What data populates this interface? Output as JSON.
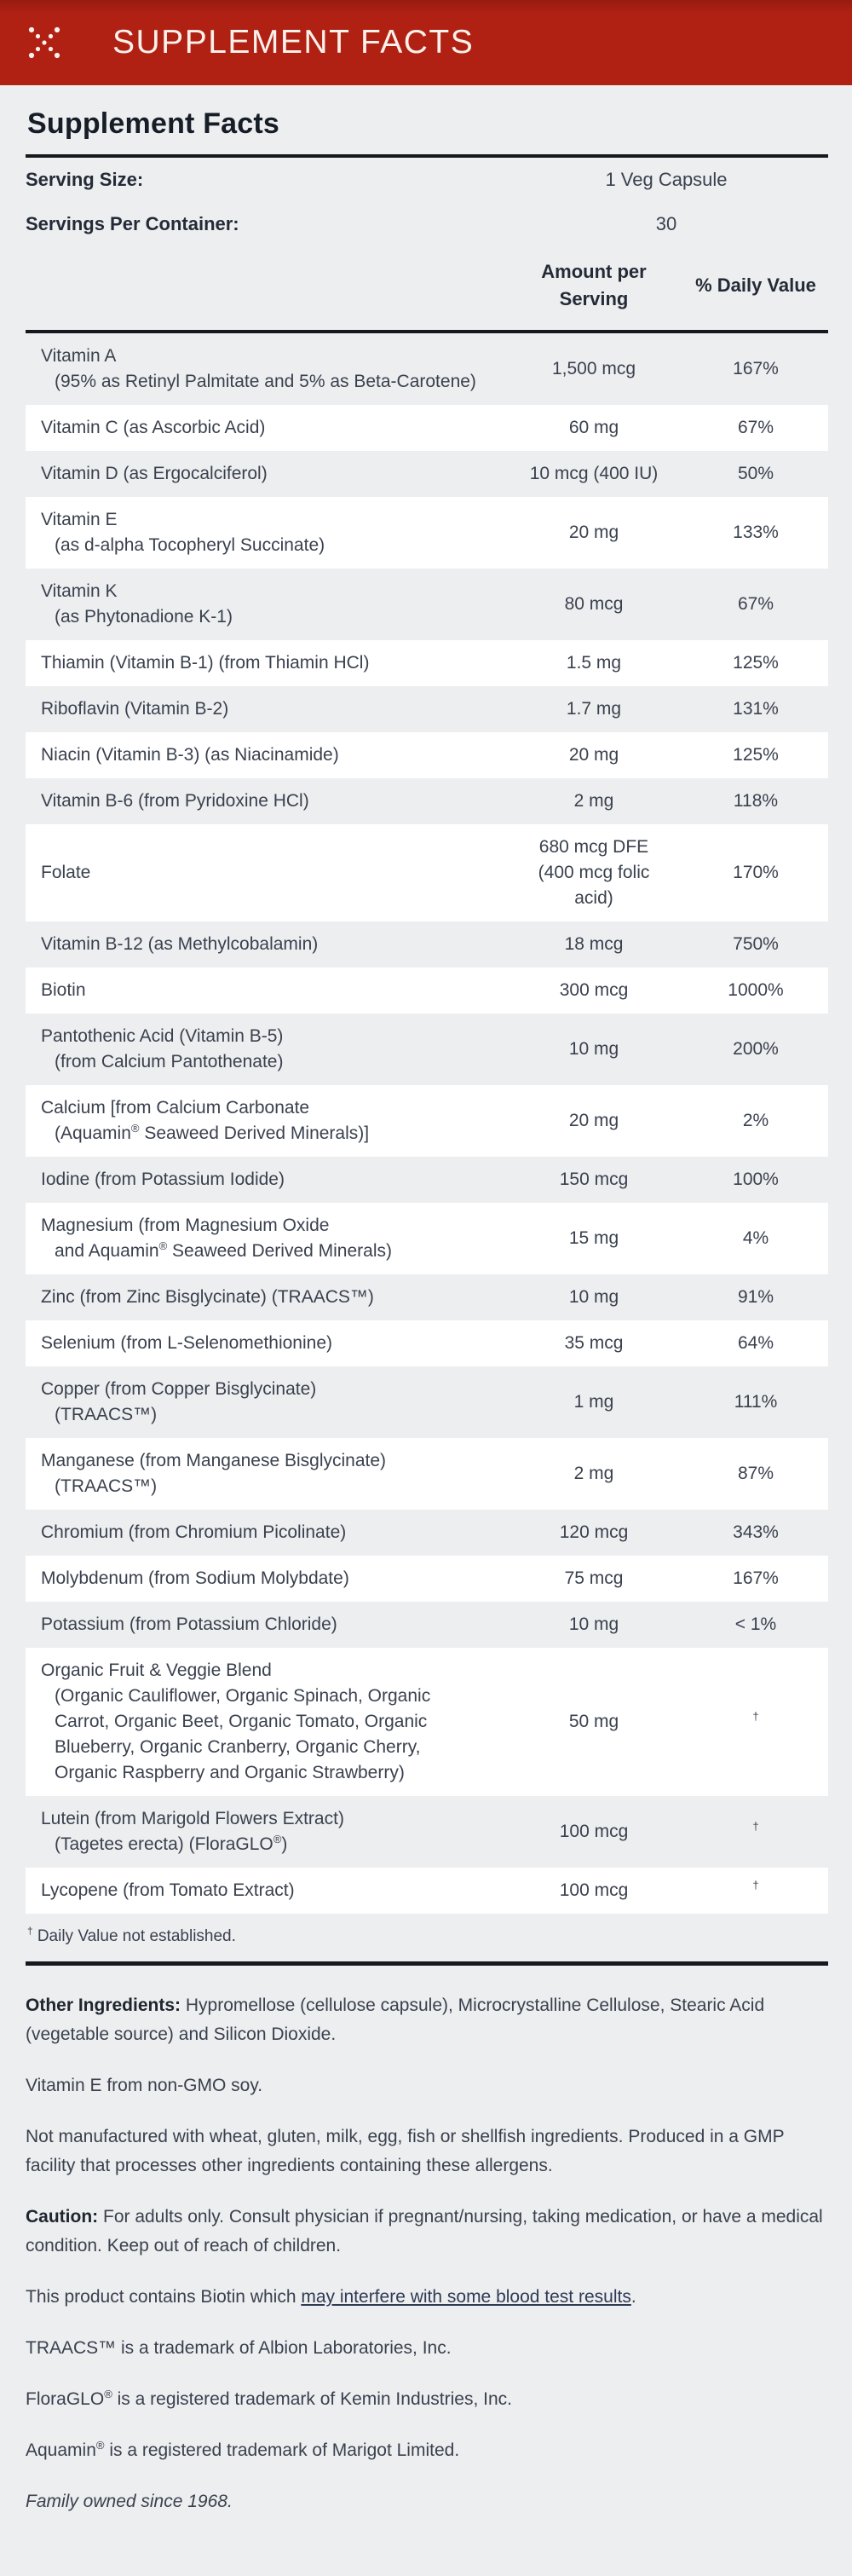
{
  "header": {
    "title": "SUPPLEMENT FACTS",
    "icon": "dotted-x-icon"
  },
  "panel": {
    "title": "Supplement Facts",
    "serving_size": {
      "label": "Serving Size:",
      "value": "1 Veg Capsule"
    },
    "servings_per_container": {
      "label": "Servings Per Container:",
      "value": "30"
    }
  },
  "table": {
    "headers": {
      "amount": "Amount per Serving",
      "daily_value": "% Daily Value"
    },
    "rows": [
      {
        "name": [
          "Vitamin A",
          "(95% as Retinyl Palmitate and 5% as Beta-Carotene)"
        ],
        "amount": [
          "1,500 mcg"
        ],
        "dv": "167%"
      },
      {
        "name": [
          "Vitamin C (as Ascorbic Acid)"
        ],
        "amount": [
          "60 mg"
        ],
        "dv": "67%"
      },
      {
        "name": [
          "Vitamin D (as Ergocalciferol)"
        ],
        "amount": [
          "10 mcg (400 IU)"
        ],
        "dv": "50%"
      },
      {
        "name": [
          "Vitamin E",
          "(as d-alpha Tocopheryl Succinate)"
        ],
        "amount": [
          "20 mg"
        ],
        "dv": "133%"
      },
      {
        "name": [
          "Vitamin K",
          "(as Phytonadione K-1)"
        ],
        "amount": [
          "80 mcg"
        ],
        "dv": "67%"
      },
      {
        "name": [
          "Thiamin (Vitamin B-1) (from Thiamin HCl)"
        ],
        "amount": [
          "1.5 mg"
        ],
        "dv": "125%"
      },
      {
        "name": [
          "Riboflavin (Vitamin B-2)"
        ],
        "amount": [
          "1.7 mg"
        ],
        "dv": "131%"
      },
      {
        "name": [
          "Niacin (Vitamin B-3) (as Niacinamide)"
        ],
        "amount": [
          "20 mg"
        ],
        "dv": "125%"
      },
      {
        "name": [
          "Vitamin B-6 (from Pyridoxine HCl)"
        ],
        "amount": [
          "2 mg"
        ],
        "dv": "118%"
      },
      {
        "name": [
          "Folate"
        ],
        "amount": [
          "680 mcg DFE",
          "(400 mcg folic",
          "acid)"
        ],
        "dv": "170%"
      },
      {
        "name": [
          "Vitamin B-12 (as Methylcobalamin)"
        ],
        "amount": [
          "18 mcg"
        ],
        "dv": "750%"
      },
      {
        "name": [
          "Biotin"
        ],
        "amount": [
          "300 mcg"
        ],
        "dv": "1000%"
      },
      {
        "name": [
          "Pantothenic Acid (Vitamin B-5)",
          "(from Calcium Pantothenate)"
        ],
        "amount": [
          "10 mg"
        ],
        "dv": "200%"
      },
      {
        "name": [
          "Calcium [from Calcium Carbonate",
          "(Aquamin® Seaweed Derived Minerals)]"
        ],
        "amount": [
          "20 mg"
        ],
        "dv": "2%"
      },
      {
        "name": [
          "Iodine (from Potassium Iodide)"
        ],
        "amount": [
          "150 mcg"
        ],
        "dv": "100%"
      },
      {
        "name": [
          "Magnesium (from Magnesium Oxide",
          "and Aquamin® Seaweed Derived Minerals)"
        ],
        "amount": [
          "15 mg"
        ],
        "dv": "4%"
      },
      {
        "name": [
          "Zinc (from Zinc Bisglycinate) (TRAACS™)"
        ],
        "amount": [
          "10 mg"
        ],
        "dv": "91%"
      },
      {
        "name": [
          "Selenium (from L-Selenomethionine)"
        ],
        "amount": [
          "35 mcg"
        ],
        "dv": "64%"
      },
      {
        "name": [
          "Copper (from Copper Bisglycinate)",
          "(TRAACS™)"
        ],
        "amount": [
          "1 mg"
        ],
        "dv": "111%"
      },
      {
        "name": [
          "Manganese (from Manganese Bisglycinate)",
          "(TRAACS™)"
        ],
        "amount": [
          "2 mg"
        ],
        "dv": "87%"
      },
      {
        "name": [
          "Chromium (from Chromium Picolinate)"
        ],
        "amount": [
          "120 mcg"
        ],
        "dv": "343%"
      },
      {
        "name": [
          "Molybdenum (from Sodium Molybdate)"
        ],
        "amount": [
          "75 mcg"
        ],
        "dv": "167%"
      },
      {
        "name": [
          "Potassium (from Potassium Chloride)"
        ],
        "amount": [
          "10 mg"
        ],
        "dv": "< 1%"
      },
      {
        "name": [
          "Organic Fruit & Veggie Blend",
          "(Organic Cauliflower, Organic Spinach, Organic",
          "Carrot, Organic Beet, Organic Tomato, Organic",
          "Blueberry, Organic Cranberry, Organic Cherry,",
          "Organic Raspberry and Organic Strawberry)"
        ],
        "amount": [
          "50 mg"
        ],
        "dv": "†"
      },
      {
        "name": [
          "Lutein (from Marigold Flowers Extract)",
          "(Tagetes erecta) (FloraGLO®)"
        ],
        "amount": [
          "100 mcg"
        ],
        "dv": "†"
      },
      {
        "name": [
          "Lycopene (from Tomato Extract)"
        ],
        "amount": [
          "100 mcg"
        ],
        "dv": "†"
      }
    ],
    "footnote": "† Daily Value not established."
  },
  "notes": [
    {
      "parts": [
        {
          "text": "Other Ingredients:",
          "bold": true
        },
        {
          "text": " Hypromellose (cellulose capsule), Microcrystalline Cellulose, Stearic Acid (vegetable source) and Silicon Dioxide."
        }
      ]
    },
    {
      "parts": [
        {
          "text": "Vitamin E from non-GMO soy."
        }
      ]
    },
    {
      "parts": [
        {
          "text": "Not manufactured with wheat, gluten, milk, egg, fish or shellfish ingredients. Produced in a GMP facility that processes other ingredients containing these allergens."
        }
      ]
    },
    {
      "parts": [
        {
          "text": "Caution:",
          "bold": true
        },
        {
          "text": " For adults only. Consult physician if pregnant/nursing, taking medication, or have a medical condition. Keep out of reach of children."
        }
      ]
    },
    {
      "parts": [
        {
          "text": "This product contains Biotin which "
        },
        {
          "text": "may interfere with some blood test results",
          "link": true
        },
        {
          "text": "."
        }
      ]
    },
    {
      "parts": [
        {
          "text": "TRAACS™ is a trademark of Albion Laboratories, Inc."
        }
      ]
    },
    {
      "parts": [
        {
          "text": "FloraGLO® is a registered trademark of Kemin Industries, Inc."
        }
      ]
    },
    {
      "parts": [
        {
          "text": "Aquamin® is a registered trademark of Marigot Limited."
        }
      ]
    },
    {
      "parts": [
        {
          "text": "Family owned since 1968.",
          "italic": true
        }
      ]
    }
  ],
  "colors": {
    "banner_bg": "#b02114",
    "banner_text": "#f9f1ea",
    "page_bg": "#edeef0",
    "row_stripe": "#ffffff",
    "rule": "#15191f",
    "text": "#3a414e",
    "link": "#2f3a55"
  }
}
